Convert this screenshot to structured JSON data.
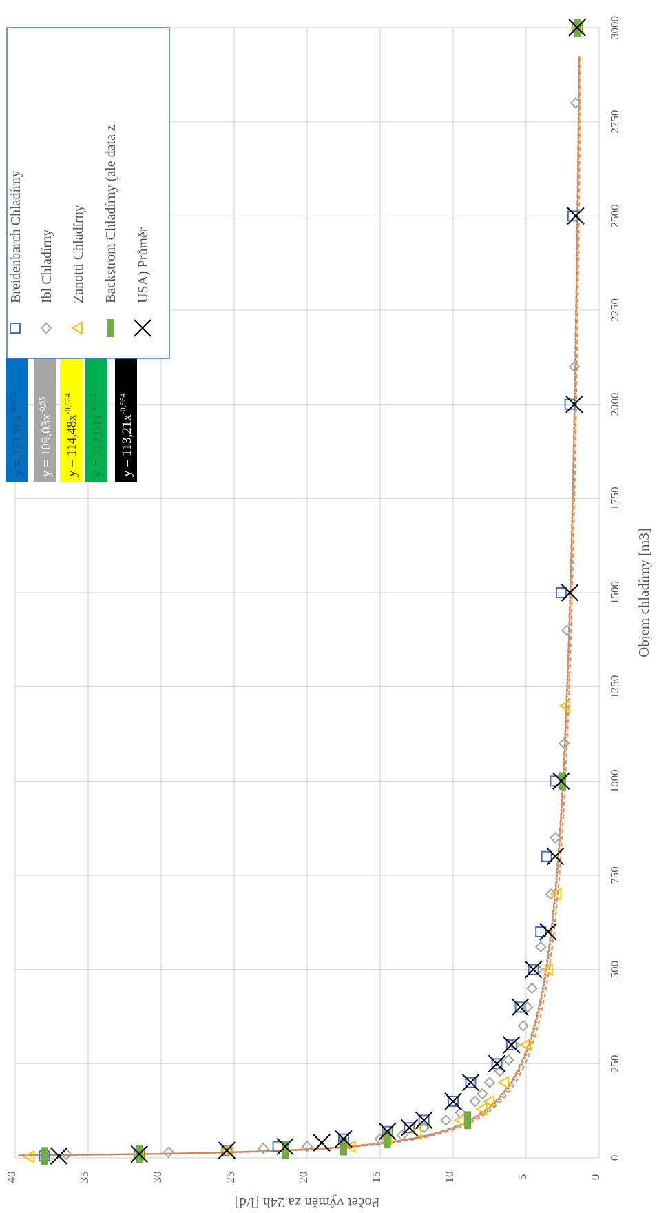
{
  "chart_data": {
    "type": "scatter",
    "orientation": "rotated-90-clockwise",
    "xlabel": "Objem chladírny [m3]",
    "ylabel": "Počet výměn za 24h [l/d]",
    "xlim": [
      0,
      3000
    ],
    "ylim": [
      0,
      40
    ],
    "x_ticks": [
      "0",
      "250",
      "500",
      "750",
      "1000",
      "1250",
      "1500",
      "1750",
      "2000",
      "2250",
      "2500",
      "2750",
      "3000"
    ],
    "y_ticks": [
      "0",
      "5",
      "10",
      "15",
      "20",
      "25",
      "30",
      "35",
      "40"
    ],
    "grid": true,
    "legend_position": "top-right",
    "series": [
      {
        "name": "Breidenbarch Chladírny",
        "marker": "square",
        "color": "#4472C4",
        "trendline": "y = 113,36x-0,563",
        "trendline_bg": "#0070C0",
        "trendline_fg": "#1f4e79",
        "x": [
          5,
          10,
          20,
          30,
          50,
          70,
          80,
          100,
          150,
          200,
          250,
          300,
          400,
          500,
          600,
          800,
          1000,
          1500,
          2000,
          2500,
          3000
        ],
        "y": [
          38,
          31.5,
          25.5,
          22,
          17.5,
          14.5,
          13,
          12,
          10,
          8.8,
          7,
          6,
          5.4,
          4.5,
          4.0,
          3.6,
          3.0,
          2.6,
          2.0,
          1.8,
          1.5
        ]
      },
      {
        "name": "Ibl Chladírny",
        "marker": "diamond",
        "color": "#A5A5A5",
        "trendline": "y = 109,03x-0,55",
        "trendline_bg": "#A6A6A6",
        "trendline_fg": "#ffffff",
        "x": [
          10,
          15,
          20,
          25,
          30,
          40,
          50,
          60,
          80,
          100,
          120,
          150,
          170,
          200,
          230,
          260,
          300,
          350,
          400,
          450,
          500,
          560,
          700,
          850,
          1100,
          1400,
          2100,
          2800,
          3000
        ],
        "y": [
          36.5,
          29.5,
          25.5,
          23,
          20,
          17.5,
          15,
          13.5,
          12,
          10.5,
          9.5,
          8.5,
          8,
          7.5,
          6.8,
          6.2,
          5.8,
          5.2,
          4.9,
          4.6,
          4.2,
          4.0,
          3.3,
          3.0,
          2.4,
          2.2,
          1.7,
          1.6,
          1.5
        ]
      },
      {
        "name": "Zanotti Chladírny",
        "marker": "triangle",
        "color": "#FFC000",
        "trendline": "y = 114,48x-0,554",
        "trendline_bg": "#FFFF00",
        "trendline_fg": "#333333",
        "x": [
          3,
          10,
          20,
          30,
          50,
          70,
          100,
          130,
          150,
          200,
          300,
          500,
          700,
          1200,
          3000
        ],
        "y": [
          39,
          31.5,
          25.5,
          17,
          14.5,
          12.5,
          9.5,
          8,
          7.5,
          6.5,
          5,
          3.5,
          2.9,
          2.3,
          1.5
        ]
      },
      {
        "name": "Backstrom Chladírny (ale data z USA)",
        "marker": "dash",
        "color": "#70AD47",
        "trendline": "y = 112,04x-0,552",
        "trendline_bg": "#00B050",
        "trendline_fg": "#2e7d32",
        "x": [
          5,
          10,
          20,
          30,
          50,
          100,
          1000,
          3000
        ],
        "y": [
          38,
          31.5,
          21.5,
          17.5,
          14.5,
          9,
          2.5,
          1.5
        ]
      },
      {
        "name": "Průměr",
        "marker": "x",
        "color": "#000000",
        "trendline": "y = 113,21x-0,554",
        "trendline_bg": "#000000",
        "trendline_fg": "#ffffff",
        "x": [
          5,
          10,
          20,
          30,
          40,
          50,
          70,
          80,
          100,
          150,
          200,
          250,
          300,
          400,
          500,
          600,
          800,
          1000,
          1500,
          2000,
          2500,
          3000
        ],
        "y": [
          37,
          31.5,
          25.5,
          21.5,
          19,
          17.5,
          14.5,
          13,
          12,
          10,
          8.8,
          7,
          6,
          5.4,
          4.5,
          3.5,
          3.0,
          2.6,
          2.0,
          1.7,
          1.6,
          1.5
        ]
      }
    ],
    "trend_exponent_superscripts": [
      "-0,563",
      "-0,55",
      "-0,554",
      "-0,552",
      "-0,554"
    ],
    "legend_entries": [
      "Breidenbarch Chladírny",
      "Ibl Chladírny",
      "Zanotti Chladírny",
      "Backstrom Chladírny (ale data z",
      "USA) Průměr"
    ],
    "trendline_labels": [
      {
        "base": "y = 113,36x",
        "exp": "-0,563"
      },
      {
        "base": "y = 109,03x",
        "exp": "-0,55"
      },
      {
        "base": "y = 114,48x",
        "exp": "-0,554"
      },
      {
        "base": "y = 112,04x",
        "exp": "-0,552"
      },
      {
        "base": "y = 113,21x",
        "exp": "-0,554"
      }
    ]
  }
}
